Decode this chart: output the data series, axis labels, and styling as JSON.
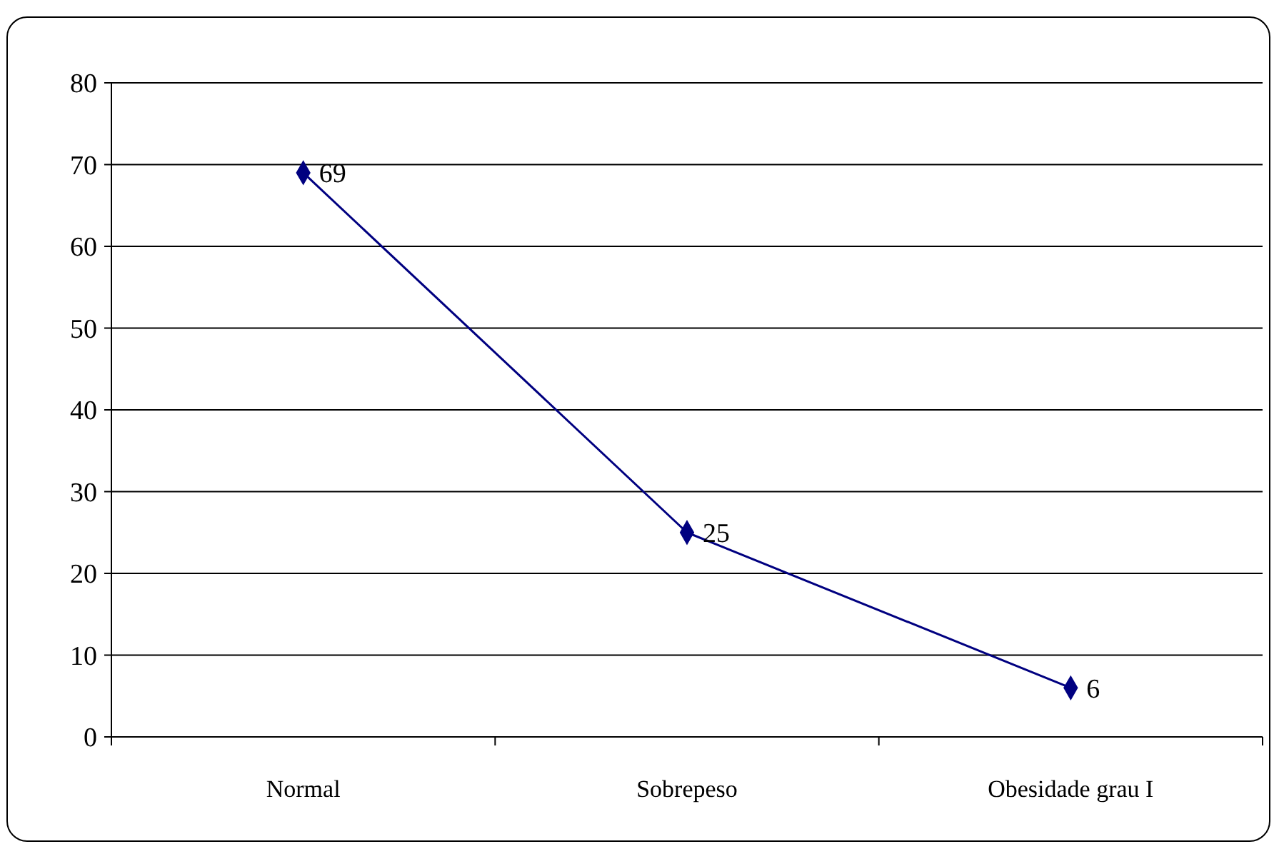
{
  "chart_data": {
    "type": "line",
    "categories": [
      "Normal",
      "Sobrepeso",
      "Obesidade grau I"
    ],
    "values": [
      69,
      25,
      6
    ],
    "color": "#000080",
    "ylim": [
      0,
      80
    ],
    "yticks": [
      0,
      10,
      20,
      30,
      40,
      50,
      60,
      70,
      80
    ],
    "grid": "y",
    "marker": "diamond",
    "line_style": "solid",
    "data_labels": true
  }
}
